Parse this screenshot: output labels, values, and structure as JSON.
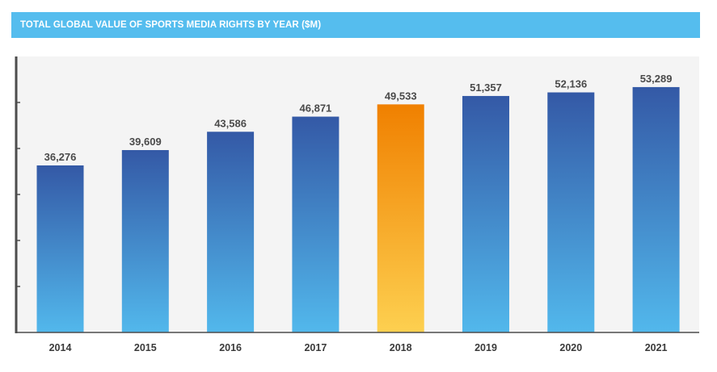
{
  "header": {
    "title": "TOTAL GLOBAL VALUE OF SPORTS MEDIA RIGHTS BY YEAR ($M)"
  },
  "colors": {
    "header_bg": "#55bdee",
    "bar_top": "#3459a6",
    "bar_bottom": "#52b8ec",
    "highlight_top": "#f08000",
    "highlight_bottom": "#fdd050",
    "plot_bg": "#f4f4f4",
    "axis": "#4d4d4d"
  },
  "chart_data": {
    "type": "bar",
    "title": "TOTAL GLOBAL VALUE OF SPORTS MEDIA RIGHTS BY YEAR ($M)",
    "xlabel": "",
    "ylabel": "",
    "categories": [
      "2014",
      "2015",
      "2016",
      "2017",
      "2018",
      "2019",
      "2020",
      "2021"
    ],
    "values": [
      36276,
      39609,
      43586,
      46871,
      49533,
      51357,
      52136,
      53289
    ],
    "value_labels": [
      "36,276",
      "39,609",
      "43,586",
      "46,871",
      "49,533",
      "51,357",
      "52,136",
      "53,289"
    ],
    "highlight_category": "2018",
    "ylim": [
      0,
      60000
    ],
    "y_tick_values": [
      10000,
      20000,
      30000,
      40000,
      50000
    ],
    "grid": false,
    "legend": "none"
  }
}
